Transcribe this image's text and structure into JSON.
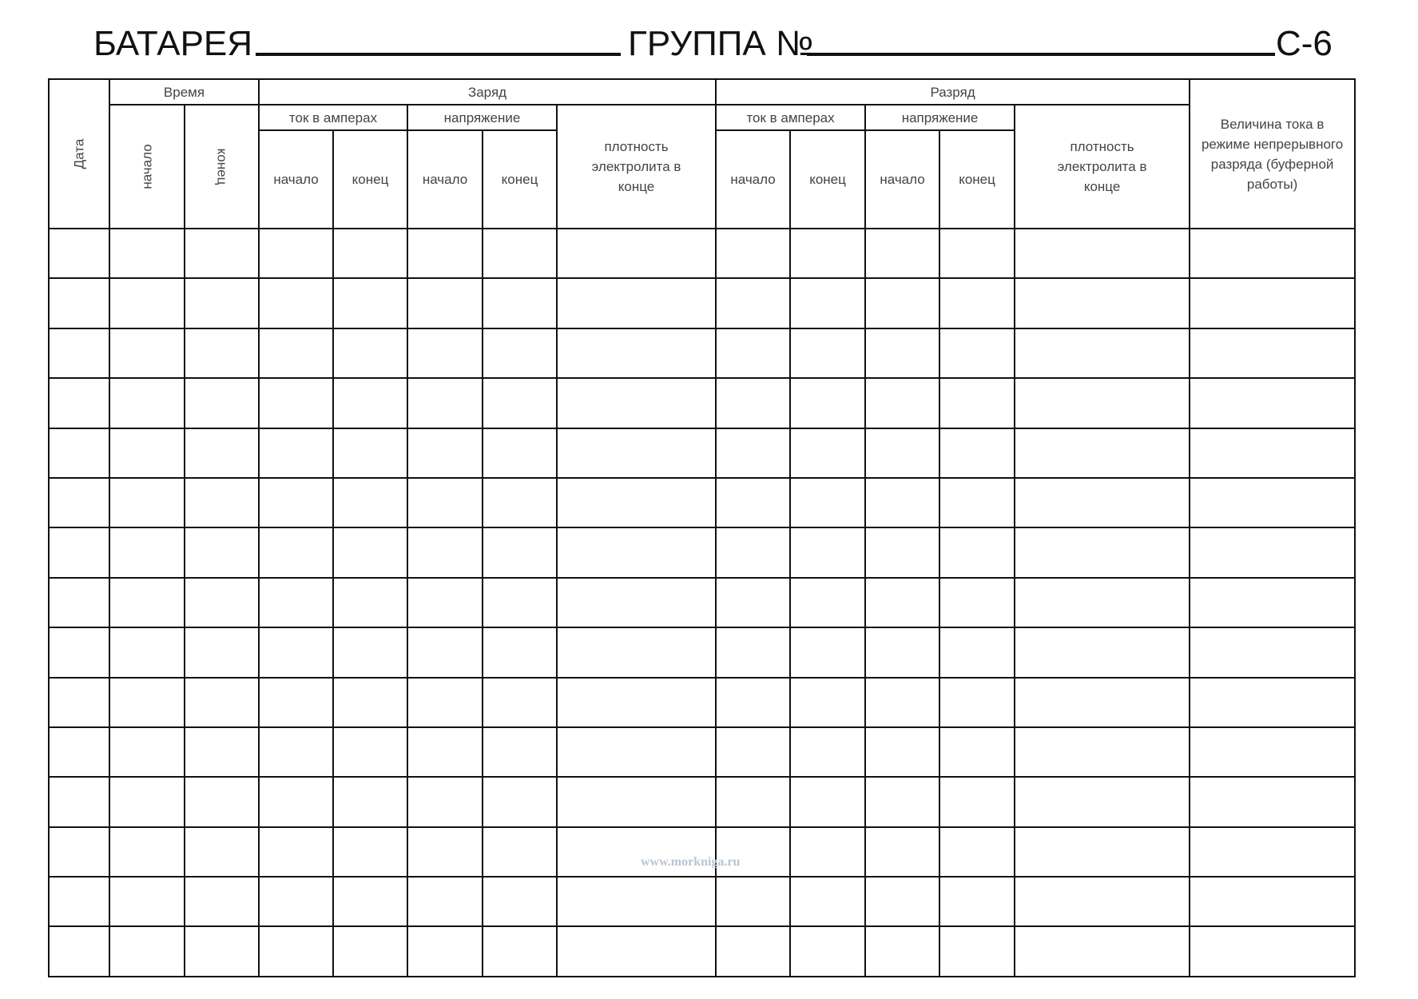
{
  "title": {
    "battery_label": "БАТАРЕЯ",
    "group_label": "ГРУППА №",
    "form_code": "С-6"
  },
  "header": {
    "date": "Дата",
    "time": "Время",
    "time_start": "начало",
    "time_end": "конец",
    "charge": "Заряд",
    "discharge": "Разряд",
    "current_amps": "ток в амперах",
    "voltage": "напряжение",
    "start": "начало",
    "end": "конец",
    "density": "плотность электролита в конце",
    "continuous_current": "Величина тока в режиме непрерывного разряда (буферной работы)"
  },
  "watermark": "www.morkniga.ru"
}
